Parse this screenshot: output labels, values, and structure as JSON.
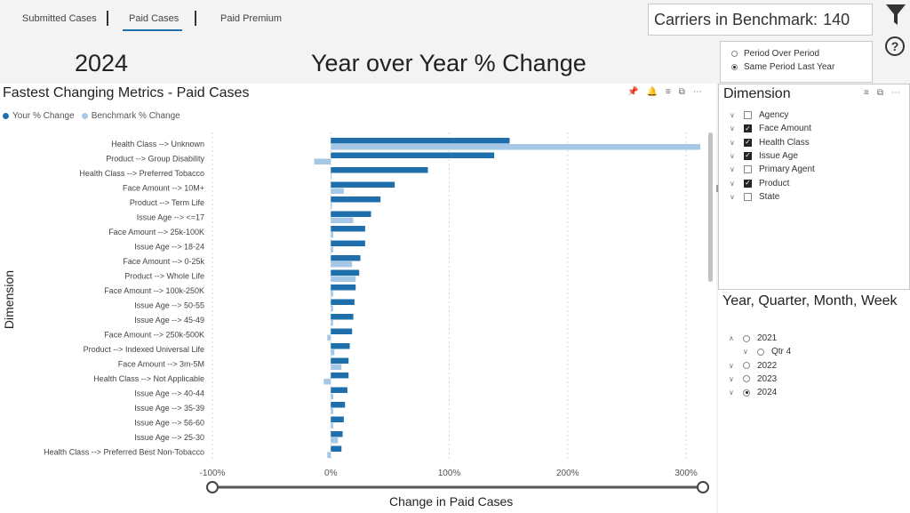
{
  "nav": {
    "tabs": [
      {
        "label": "Submitted Cases"
      },
      {
        "label": "Paid Cases"
      },
      {
        "label": "Paid Premium"
      }
    ],
    "active_tab": "Paid Cases"
  },
  "benchmark": {
    "label": "Carriers in Benchmark:",
    "value": "140"
  },
  "header": {
    "year": "2024",
    "title": "Year over Year % Change"
  },
  "period": {
    "options": [
      {
        "label": "Period Over Period",
        "selected": false
      },
      {
        "label": "Same Period Last Year",
        "selected": true
      }
    ]
  },
  "chart_panel": {
    "title": "Fastest Changing Metrics - Paid Cases",
    "legend": [
      {
        "label": "Your % Change",
        "color": "#1f6fad"
      },
      {
        "label": "Benchmark % Change",
        "color": "#a6c8e6"
      }
    ],
    "icons": [
      "pin-icon",
      "bell-icon",
      "filter-icon",
      "focus-icon",
      "more-icon"
    ]
  },
  "chart_data": {
    "type": "bar",
    "orientation": "horizontal",
    "title": "Fastest Changing Metrics - Paid Cases",
    "xlabel": "Change in Paid Cases",
    "ylabel": "Dimension",
    "xlim": [
      -100,
      320
    ],
    "x_ticks": [
      "-100%",
      "0%",
      "100%",
      "200%",
      "300%"
    ],
    "x_tick_values": [
      -100,
      0,
      100,
      200,
      300
    ],
    "grid": "vertical dotted",
    "legend_position": "top-left",
    "categories": [
      "Health Class --> Unknown",
      "Product --> Group Disability",
      "Health Class --> Preferred Tobacco",
      "Face Amount --> 10M+",
      "Product --> Term Life",
      "Issue Age --> <=17",
      "Face Amount --> 25k-100K",
      "Issue Age --> 18-24",
      "Face Amount --> 0-25k",
      "Product --> Whole Life",
      "Face Amount --> 100k-250K",
      "Issue Age --> 50-55",
      "Issue Age --> 45-49",
      "Face Amount --> 250k-500K",
      "Product --> Indexed Universal Life",
      "Face Amount --> 3m-5M",
      "Health Class --> Not Applicable",
      "Issue Age --> 40-44",
      "Issue Age --> 35-39",
      "Issue Age --> 56-60",
      "Issue Age --> 25-30",
      "Health Class --> Preferred Best Non-Tobacco"
    ],
    "series": [
      {
        "name": "Your % Change",
        "color": "#1f6fad",
        "values": [
          151,
          138,
          82,
          54,
          42,
          34,
          29,
          29,
          25,
          24,
          21,
          20,
          19,
          18,
          16,
          15,
          15,
          14,
          12,
          11,
          10,
          9
        ]
      },
      {
        "name": "Benchmark % Change",
        "color": "#a6c8e6",
        "values": [
          312,
          -14,
          0,
          11,
          1,
          19,
          2,
          2,
          18,
          21,
          2,
          2,
          2,
          -3,
          3,
          9,
          -6,
          2,
          2,
          2,
          6,
          -3
        ]
      }
    ]
  },
  "dimension_panel": {
    "title": "Dimension",
    "items": [
      {
        "label": "Agency",
        "checked": false
      },
      {
        "label": "Face Amount",
        "checked": true
      },
      {
        "label": "Health Class",
        "checked": true
      },
      {
        "label": "Issue Age",
        "checked": true
      },
      {
        "label": "Primary Agent",
        "checked": false
      },
      {
        "label": "Product",
        "checked": true
      },
      {
        "label": "State",
        "checked": false
      }
    ]
  },
  "date_panel": {
    "title": "Year, Quarter, Month, Week",
    "items": [
      {
        "label": "2021",
        "level": 0,
        "chevron": "up",
        "selected": false
      },
      {
        "label": "Qtr 4",
        "level": 1,
        "chevron": "down",
        "selected": false
      },
      {
        "label": "2022",
        "level": 0,
        "chevron": "down",
        "selected": false
      },
      {
        "label": "2023",
        "level": 0,
        "chevron": "down",
        "selected": false
      },
      {
        "label": "2024",
        "level": 0,
        "chevron": "down",
        "selected": true
      }
    ]
  }
}
